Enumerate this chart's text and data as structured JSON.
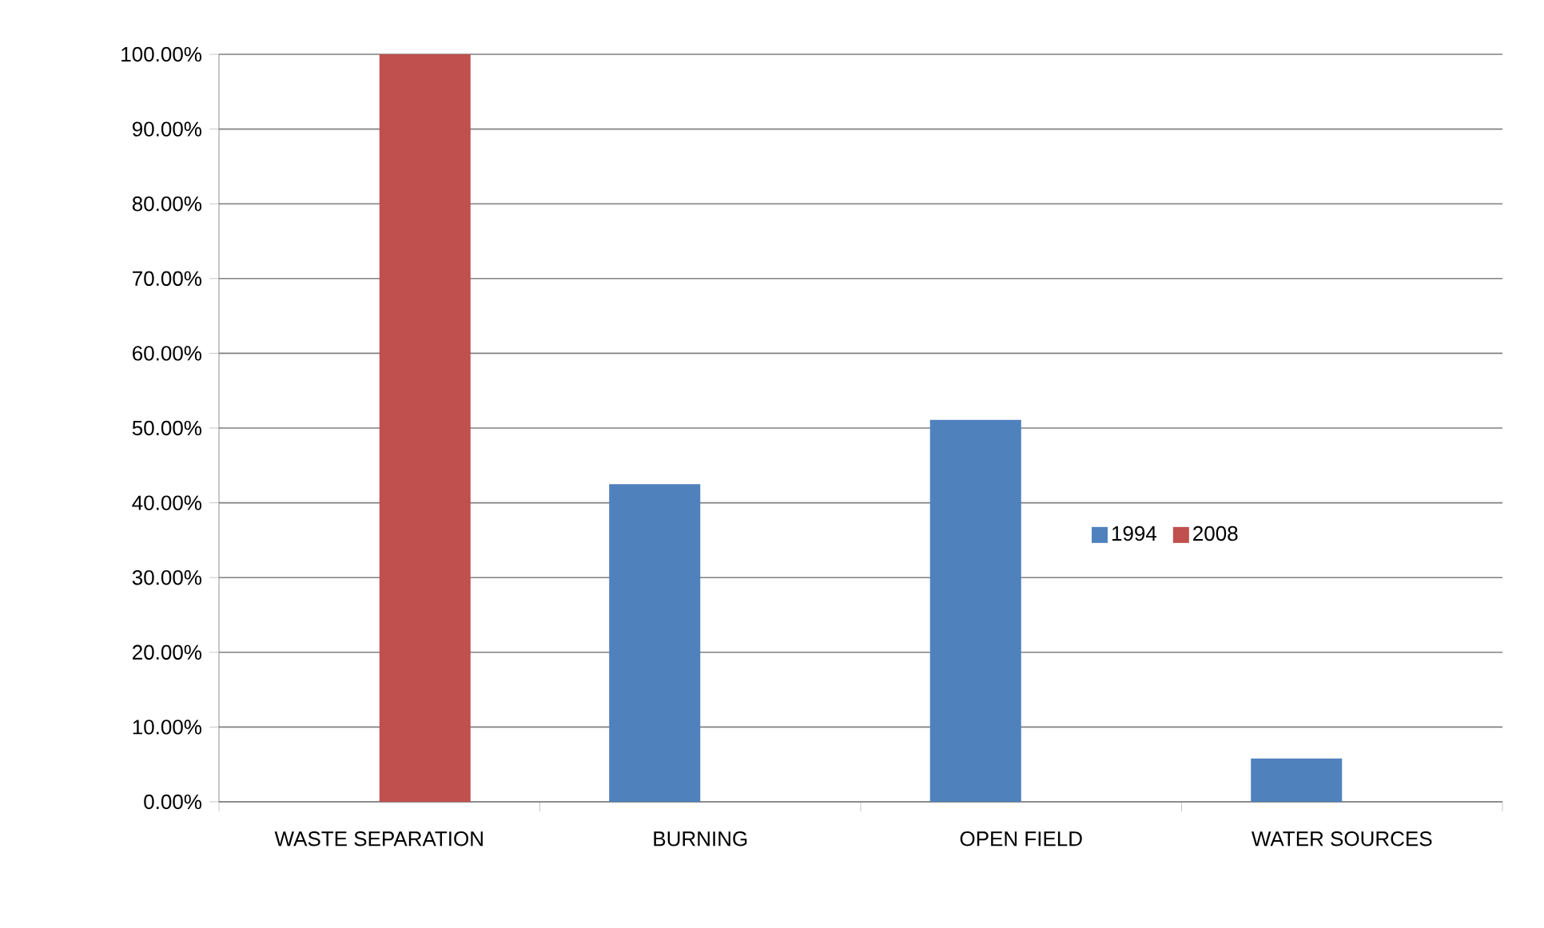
{
  "chart_data": {
    "type": "bar",
    "categories": [
      "WASTE SEPARATION",
      "BURNING",
      "OPEN FIELD",
      "WATER SOURCES"
    ],
    "series": [
      {
        "name": "1994",
        "color": "#4f81bd",
        "values": [
          0,
          42.5,
          51.1,
          5.8
        ]
      },
      {
        "name": "2008",
        "color": "#c0504d",
        "values": [
          100,
          0,
          0,
          0
        ]
      }
    ],
    "ylim": [
      0,
      100
    ],
    "yticks": [
      {
        "value": 0,
        "label": "0.00%"
      },
      {
        "value": 10,
        "label": "10.00%"
      },
      {
        "value": 20,
        "label": "20.00%"
      },
      {
        "value": 30,
        "label": "30.00%"
      },
      {
        "value": 40,
        "label": "40.00%"
      },
      {
        "value": 50,
        "label": "50.00%"
      },
      {
        "value": 60,
        "label": "60.00%"
      },
      {
        "value": 70,
        "label": "70.00%"
      },
      {
        "value": 80,
        "label": "80.00%"
      },
      {
        "value": 90,
        "label": "90.00%"
      },
      {
        "value": 100,
        "label": "100.00%"
      }
    ],
    "grid": "y",
    "legend": "right"
  }
}
